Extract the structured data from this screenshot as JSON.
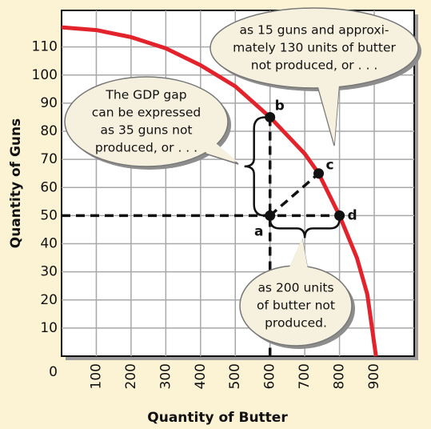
{
  "chart_data": {
    "type": "line",
    "xlabel": "Quantity of Butter",
    "ylabel": "Quantity of Guns",
    "x": [
      0,
      100,
      200,
      300,
      400,
      500,
      600,
      700,
      740,
      800,
      850,
      880,
      905
    ],
    "series": [
      {
        "color": "#e3232b",
        "values": [
          117,
          116,
          113.5,
          109.5,
          103.5,
          96,
          85,
          72,
          65,
          50,
          35,
          22,
          0
        ]
      }
    ],
    "points": [
      {
        "label": "a",
        "x": 600,
        "y": 50
      },
      {
        "label": "b",
        "x": 600,
        "y": 85
      },
      {
        "label": "c",
        "x": 740,
        "y": 65
      },
      {
        "label": "d",
        "x": 800,
        "y": 50
      }
    ],
    "annotations": [
      [
        "The GDP gap",
        "can be expressed",
        "as 35 guns not",
        "produced, or . . ."
      ],
      [
        "as 15 guns and approxi-",
        "mately 130 units of butter",
        "not produced, or . . ."
      ],
      [
        "as 200 units",
        "of butter not",
        "produced."
      ]
    ],
    "xlim": [
      0,
      1015
    ],
    "ylim": [
      0,
      123
    ],
    "xticks": [
      100,
      200,
      300,
      400,
      500,
      600,
      700,
      800,
      900
    ],
    "yticks": [
      0,
      10,
      20,
      30,
      40,
      50,
      60,
      70,
      80,
      90,
      100,
      110
    ],
    "grid": true
  }
}
